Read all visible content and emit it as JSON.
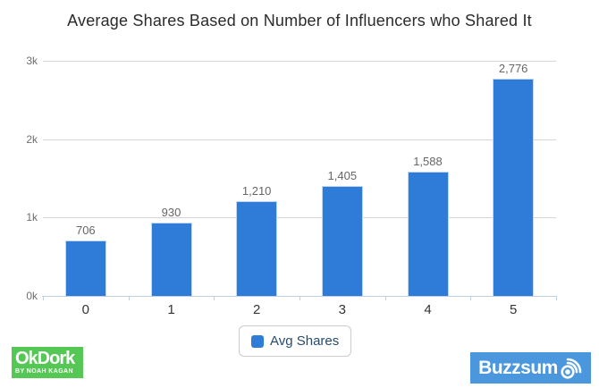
{
  "title": "Average Shares Based on Number of Influencers who Shared It",
  "chart_data": {
    "type": "bar",
    "title": "Average Shares Based on Number of Influencers who Shared It",
    "categories": [
      "0",
      "1",
      "2",
      "3",
      "4",
      "5"
    ],
    "values": [
      706,
      930,
      1210,
      1405,
      1588,
      2776
    ],
    "value_labels": [
      "706",
      "930",
      "1,210",
      "1,405",
      "1,588",
      "2,776"
    ],
    "xlabel": "",
    "ylabel": "",
    "ylim": [
      0,
      3000
    ],
    "yticks": [
      {
        "value": 0,
        "label": "0k"
      },
      {
        "value": 1000,
        "label": "1k"
      },
      {
        "value": 2000,
        "label": "2k"
      },
      {
        "value": 3000,
        "label": "3k"
      }
    ],
    "grid": true,
    "legend_position": "bottom",
    "series": [
      {
        "name": "Avg Shares",
        "color": "#2e7cd8"
      }
    ]
  },
  "legend": {
    "label": "Avg Shares"
  },
  "branding": {
    "okdork": {
      "title": "OkDork",
      "subtitle": "BY NOAH KAGAN",
      "bg": "#55c755"
    },
    "buzzsumo": {
      "display_prefix": "Buzzsum",
      "full_name": "Buzzsumo",
      "bg": "#4a97de"
    }
  },
  "colors": {
    "bar": "#2e7cd8",
    "gridline": "#d6d6d6",
    "axis": "#c0d0e0",
    "y_label": "#6f6f6f",
    "x_label": "#333333",
    "value_label": "#666666",
    "legend_text": "#274b6d",
    "title": "#2b2b2b"
  }
}
